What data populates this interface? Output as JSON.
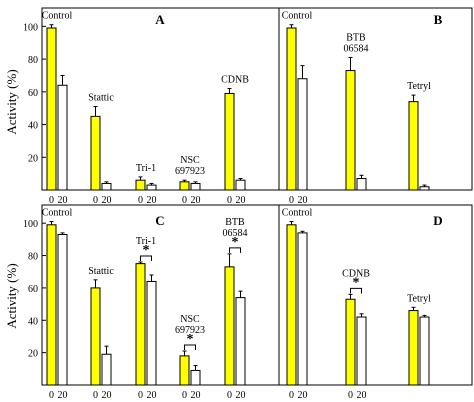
{
  "colors": {
    "zero": "#ffff00",
    "twenty": "#ffffff",
    "stroke": "#000000"
  },
  "ylabel": "Activity (%)",
  "chart_data": [
    {
      "panel": "A",
      "type": "bar",
      "ylim": [
        0,
        110
      ],
      "yticks": [
        20,
        40,
        60,
        80,
        100
      ],
      "groups": [
        {
          "label": [
            "Control"
          ],
          "ticks": [
            "0",
            "20"
          ],
          "values": [
            99,
            64
          ],
          "errors": [
            2,
            6
          ]
        },
        {
          "label": [
            "Stattic"
          ],
          "ticks": [
            "0",
            "20"
          ],
          "values": [
            45,
            4
          ],
          "errors": [
            6,
            1
          ]
        },
        {
          "label": [
            "Tri-1"
          ],
          "ticks": [
            "0",
            "20"
          ],
          "values": [
            6,
            3
          ],
          "errors": [
            2,
            1
          ]
        },
        {
          "label": [
            "NSC",
            "697923"
          ],
          "ticks": [
            "0",
            "20"
          ],
          "values": [
            5,
            4
          ],
          "errors": [
            1,
            1
          ]
        },
        {
          "label": [
            "CDNB"
          ],
          "ticks": [
            "0",
            "20"
          ],
          "values": [
            59,
            6
          ],
          "errors": [
            3,
            1
          ]
        }
      ]
    },
    {
      "panel": "B",
      "type": "bar",
      "ylim": [
        0,
        110
      ],
      "yticks": [],
      "groups": [
        {
          "label": [
            "Control"
          ],
          "ticks": [
            "0",
            "20"
          ],
          "values": [
            99,
            68
          ],
          "errors": [
            2,
            8
          ]
        },
        {
          "label": [
            "BTB",
            "06584"
          ],
          "ticks": [],
          "values": [
            73,
            7
          ],
          "errors": [
            8,
            2
          ]
        },
        {
          "label": [
            "Tetryl"
          ],
          "ticks": [],
          "values": [
            54,
            2
          ],
          "errors": [
            4,
            1
          ]
        }
      ]
    },
    {
      "panel": "C",
      "type": "bar",
      "ylim": [
        0,
        110
      ],
      "yticks": [
        20,
        40,
        60,
        80,
        100
      ],
      "groups": [
        {
          "label": [
            "Control"
          ],
          "ticks": [
            "0",
            "20"
          ],
          "values": [
            99,
            93
          ],
          "errors": [
            2,
            1
          ],
          "sig": ""
        },
        {
          "label": [
            "Stattic"
          ],
          "ticks": [
            "0",
            "20"
          ],
          "values": [
            60,
            19
          ],
          "errors": [
            5,
            5
          ],
          "sig": ""
        },
        {
          "label": [
            "Tri-1"
          ],
          "ticks": [
            "0",
            "20"
          ],
          "values": [
            75,
            64
          ],
          "errors": [
            1,
            4
          ],
          "sig": "*"
        },
        {
          "label": [
            "NSC",
            "697923"
          ],
          "ticks": [
            "0",
            "20"
          ],
          "values": [
            18,
            9
          ],
          "errors": [
            3,
            3
          ],
          "sig": "*"
        },
        {
          "label": [
            "BTB",
            "06584"
          ],
          "ticks": [
            "0",
            "20"
          ],
          "values": [
            73,
            54
          ],
          "errors": [
            8,
            4
          ],
          "sig": "*"
        }
      ]
    },
    {
      "panel": "D",
      "type": "bar",
      "ylim": [
        0,
        110
      ],
      "yticks": [],
      "groups": [
        {
          "label": [
            "Control"
          ],
          "ticks": [
            "0",
            "20"
          ],
          "values": [
            99,
            94
          ],
          "errors": [
            2,
            1
          ],
          "sig": ""
        },
        {
          "label": [
            "CDNB"
          ],
          "ticks": [
            "0",
            "20"
          ],
          "values": [
            53,
            42
          ],
          "errors": [
            3,
            2
          ],
          "sig": "*"
        },
        {
          "label": [
            "Tetryl"
          ],
          "ticks": [],
          "values": [
            46,
            42
          ],
          "errors": [
            2,
            1
          ],
          "sig": ""
        }
      ]
    }
  ]
}
